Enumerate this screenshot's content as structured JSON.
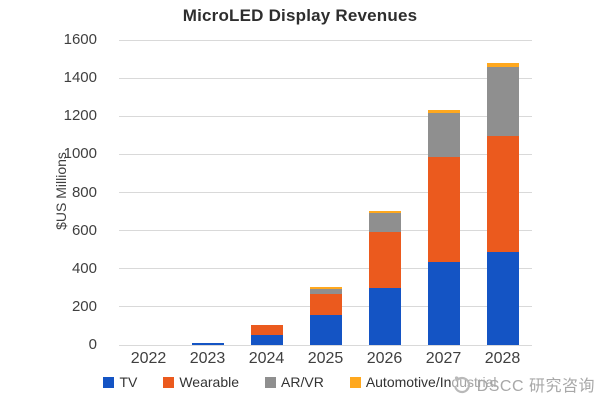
{
  "title": "MicroLED Display Revenues",
  "chart_data": {
    "type": "bar",
    "stacked": true,
    "title": "MicroLED Display Revenues",
    "xlabel": "",
    "ylabel": "$US Millions",
    "categories": [
      "2022",
      "2023",
      "2024",
      "2025",
      "2026",
      "2027",
      "2028"
    ],
    "series": [
      {
        "name": "TV",
        "color": "#1454C4",
        "values": [
          0,
          10,
          55,
          160,
          300,
          435,
          490
        ]
      },
      {
        "name": "Wearable",
        "color": "#EB5A1E",
        "values": [
          0,
          0,
          50,
          110,
          295,
          550,
          605
        ]
      },
      {
        "name": "AR/VR",
        "color": "#8F8F8F",
        "values": [
          0,
          0,
          0,
          25,
          100,
          230,
          365
        ]
      },
      {
        "name": "Automotive/Industrial",
        "color": "#FFA81E",
        "values": [
          0,
          0,
          0,
          5,
          10,
          20,
          20
        ]
      }
    ],
    "totals": [
      0,
      10,
      105,
      300,
      705,
      1235,
      1480
    ],
    "ylim": [
      0,
      1600
    ],
    "yticks": [
      0,
      200,
      400,
      600,
      800,
      1000,
      1200,
      1400,
      1600
    ],
    "grid": true,
    "legend_position": "bottom"
  },
  "watermark": {
    "logo": "dscc-logo",
    "text": "DSCC 研究咨询"
  },
  "colors": {
    "background": "#FFFFFF",
    "grid": "#D9D9D9",
    "axis_text": "#3F3F3F",
    "title_text": "#2E2E2E",
    "legend_text": "#333333",
    "watermark_text": "#A8A8A8",
    "watermark_logo": "#B9B9B9"
  }
}
